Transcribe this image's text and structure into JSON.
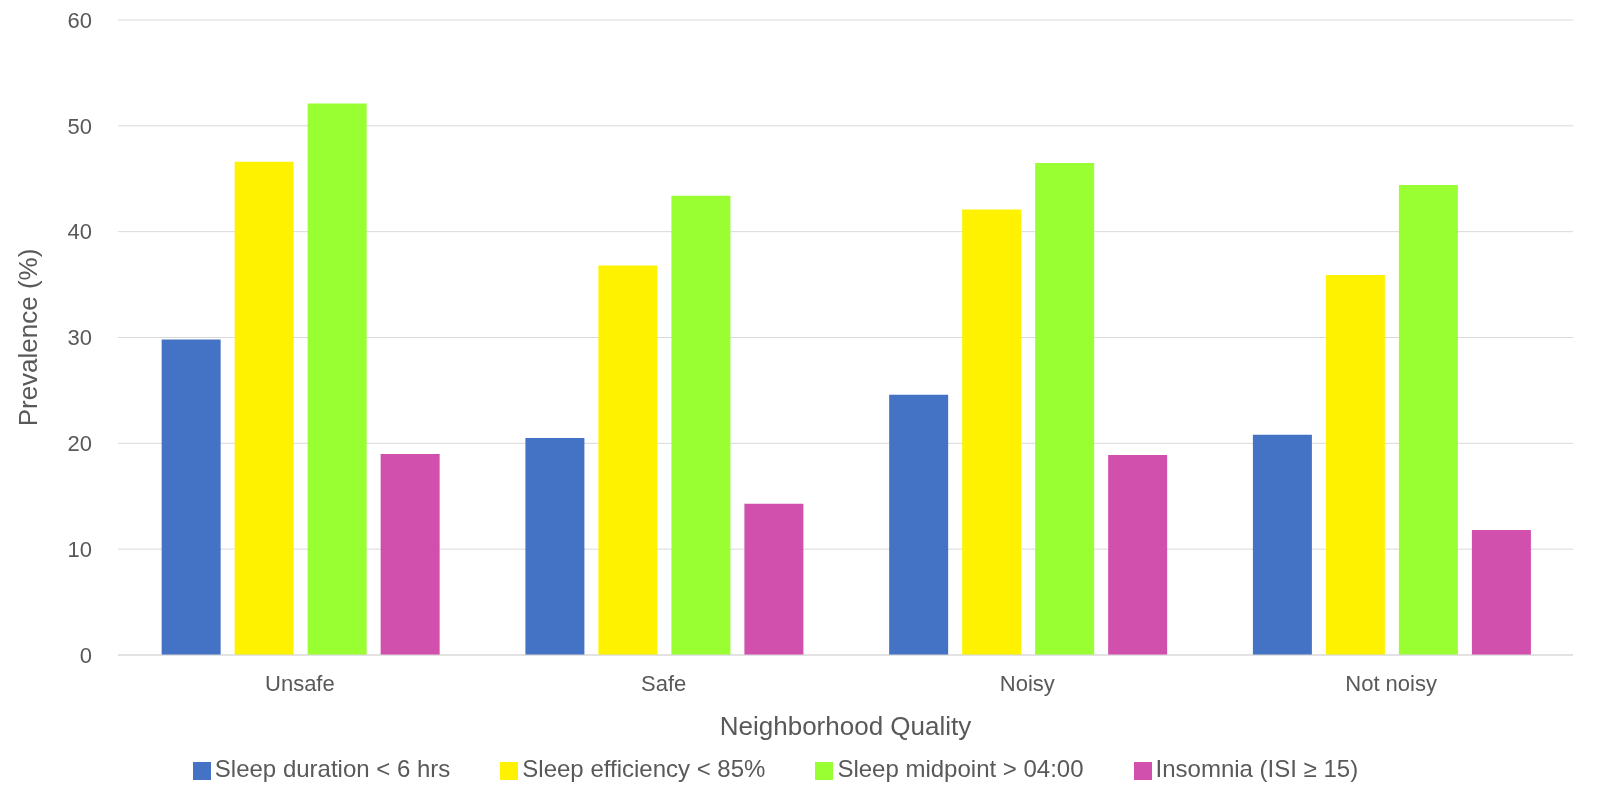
{
  "chart_data": {
    "type": "bar",
    "xlabel": "Neighborhood Quality",
    "ylabel": "Prevalence (%)",
    "categories": [
      "Unsafe",
      "Safe",
      "Noisy",
      "Not noisy"
    ],
    "series": [
      {
        "name": "Sleep duration < 6 hrs",
        "color": "#4472c4",
        "values": [
          29.8,
          20.5,
          24.6,
          20.8
        ]
      },
      {
        "name": "Sleep efficiency < 85%",
        "color": "#fff200",
        "values": [
          46.6,
          36.8,
          42.1,
          35.9
        ]
      },
      {
        "name": "Sleep midpoint > 04:00",
        "color": "#99ff33",
        "values": [
          52.1,
          43.4,
          46.5,
          44.4
        ]
      },
      {
        "name": "Insomnia (ISI ≥ 15)",
        "color": "#d150ae",
        "values": [
          19.0,
          14.3,
          18.9,
          11.8
        ]
      }
    ],
    "ylim": [
      0,
      60
    ],
    "yticks": [
      0,
      10,
      20,
      30,
      40,
      50,
      60
    ],
    "grid": "y",
    "legend": "bottom"
  }
}
